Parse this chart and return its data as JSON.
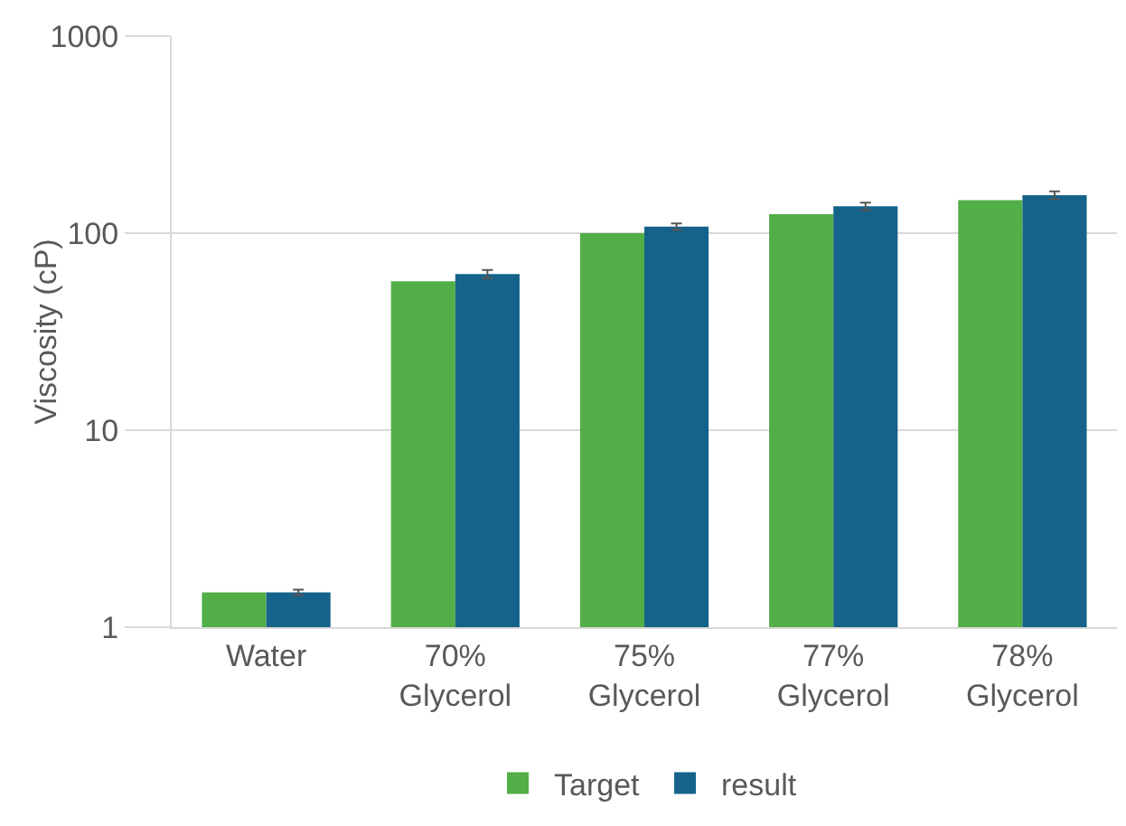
{
  "chart_data": {
    "type": "bar",
    "ylabel": "Viscosity (cP)",
    "categories": [
      "Water",
      "70%\nGlycerol",
      "75%\nGlycerol",
      "77%\nGlycerol",
      "78%\nGlycerol"
    ],
    "series": [
      {
        "name": "Target",
        "color": "#52ae47",
        "values": [
          1.5,
          57,
          100,
          125,
          147
        ]
      },
      {
        "name": "result",
        "color": "#15628a",
        "values": [
          1.5,
          62,
          108,
          137,
          156
        ],
        "errors": [
          0.05,
          3,
          4,
          6,
          7
        ]
      }
    ],
    "log": "y",
    "ylim": [
      1,
      1000
    ],
    "yticks": [
      1,
      10,
      100,
      1000
    ],
    "grid": "y",
    "legend": "bottom"
  }
}
